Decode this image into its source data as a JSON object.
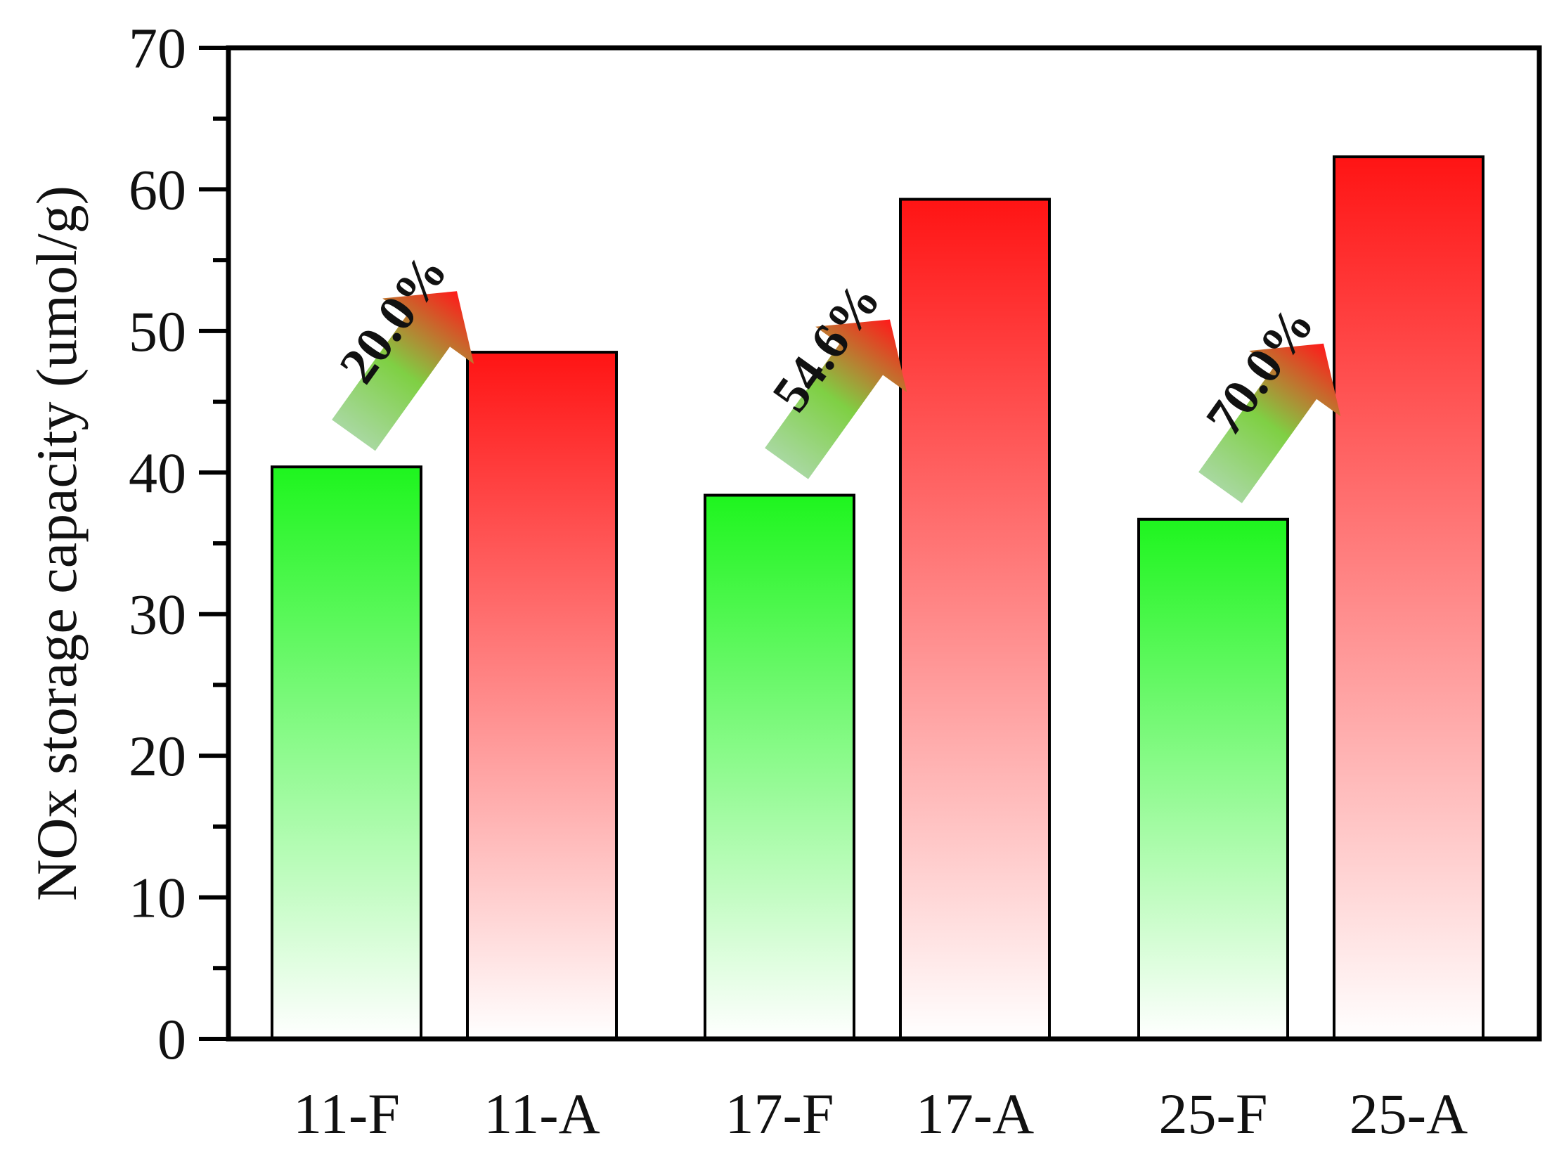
{
  "chart_data": {
    "type": "bar",
    "title": "",
    "xlabel": "",
    "ylabel": "NOx storage capacity (umol/g)",
    "ylim": [
      0,
      70
    ],
    "yticks": [
      0,
      10,
      20,
      30,
      40,
      50,
      60,
      70
    ],
    "grid": false,
    "categories": [
      "11-F",
      "11-A",
      "17-F",
      "17-A",
      "25-F",
      "25-A"
    ],
    "values": [
      40.4,
      48.5,
      38.4,
      59.3,
      36.7,
      62.3
    ],
    "bar_styles": [
      "fresh",
      "aged",
      "fresh",
      "aged",
      "fresh",
      "aged"
    ],
    "colors": {
      "fresh_top": "#1ef51e",
      "fresh_bottom": "#ffffff",
      "aged_top": "#ff1414",
      "aged_bottom": "#ffffff",
      "arrow_start": "#a8d8a0",
      "arrow_mid": "#7fd044",
      "arrow_end": "#ff1a1a",
      "axis": "#000000"
    },
    "annotations": [
      {
        "text": "20.0%",
        "from_index": 0,
        "to_index": 1,
        "icon": "up-right-arrow-icon"
      },
      {
        "text": "54.6%",
        "from_index": 2,
        "to_index": 3,
        "icon": "up-right-arrow-icon"
      },
      {
        "text": "70.0%",
        "from_index": 4,
        "to_index": 5,
        "icon": "up-right-arrow-icon"
      }
    ]
  }
}
